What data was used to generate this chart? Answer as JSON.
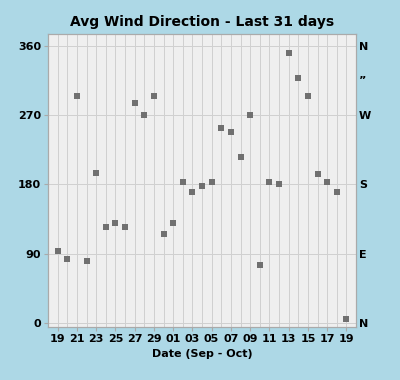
{
  "title": "Avg Wind Direction - Last 31 days",
  "xlabel": "Date (Sep - Oct)",
  "background_color": "#add8e6",
  "plot_bg_color": "#efefef",
  "grid_color": "#d0d0d0",
  "marker_color": "#707070",
  "x_labels": [
    "19",
    "21",
    "23",
    "25",
    "27",
    "29",
    "01",
    "03",
    "05",
    "07",
    "09",
    "11",
    "13",
    "15",
    "17",
    "19"
  ],
  "x_tick_pos": [
    0,
    2,
    4,
    6,
    8,
    10,
    12,
    14,
    16,
    18,
    20,
    22,
    24,
    26,
    28,
    30
  ],
  "yticks": [
    0,
    90,
    180,
    270,
    360
  ],
  "right_yticks": [
    360,
    315,
    270,
    180,
    90,
    0
  ],
  "right_labels": [
    "N",
    "”",
    "W",
    "S",
    "E",
    "N"
  ],
  "ylim": [
    -5,
    375
  ],
  "xlim": [
    -1,
    31
  ],
  "data": [
    [
      0,
      93
    ],
    [
      1,
      83
    ],
    [
      2,
      295
    ],
    [
      3,
      80
    ],
    [
      4,
      195
    ],
    [
      5,
      125
    ],
    [
      6,
      130
    ],
    [
      7,
      125
    ],
    [
      8,
      285
    ],
    [
      9,
      270
    ],
    [
      10,
      295
    ],
    [
      11,
      115
    ],
    [
      12,
      130
    ],
    [
      13,
      183
    ],
    [
      14,
      170
    ],
    [
      15,
      178
    ],
    [
      16,
      183
    ],
    [
      17,
      253
    ],
    [
      18,
      248
    ],
    [
      19,
      215
    ],
    [
      20,
      270
    ],
    [
      21,
      75
    ],
    [
      22,
      183
    ],
    [
      23,
      180
    ],
    [
      24,
      350
    ],
    [
      25,
      318
    ],
    [
      26,
      295
    ],
    [
      27,
      193
    ],
    [
      28,
      183
    ],
    [
      29,
      170
    ],
    [
      30,
      5
    ]
  ]
}
